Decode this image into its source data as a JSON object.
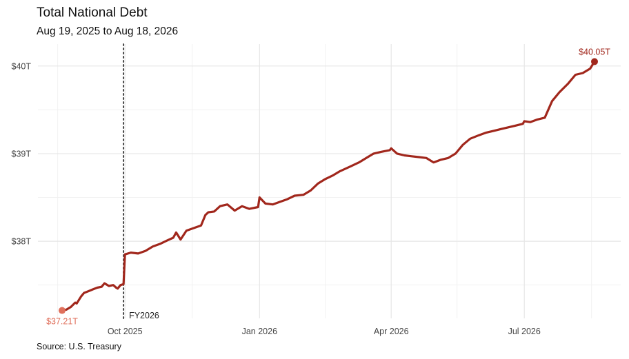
{
  "chart_data": {
    "type": "line",
    "title": "Total National Debt",
    "subtitle": "Aug 19, 2025 to Aug 18, 2026",
    "source": "Source: U.S. Treasury",
    "xlabel": "",
    "ylabel": "",
    "xlim": [
      "2025-08-19",
      "2026-08-18"
    ],
    "ylim": [
      37.12,
      40.25
    ],
    "y_ticks": [
      {
        "value": 38,
        "label": "$38T"
      },
      {
        "value": 39,
        "label": "$39T"
      },
      {
        "value": 40,
        "label": "$40T"
      }
    ],
    "y_minor_ticks": [
      37.5,
      38.5,
      39.5
    ],
    "x_ticks": [
      {
        "date": "2025-10-01",
        "label": "Oct 2025"
      },
      {
        "date": "2026-01-01",
        "label": "Jan 2026"
      },
      {
        "date": "2026-04-01",
        "label": "Apr 2026"
      },
      {
        "date": "2026-07-01",
        "label": "Jul 2026"
      }
    ],
    "x_minor_ticks": [
      "2025-08-16",
      "2025-11-16",
      "2026-02-15",
      "2026-05-16",
      "2026-08-16"
    ],
    "grid": true,
    "line_color": "#a1271c",
    "start_marker_color": "#e0705c",
    "end_marker_color": "#a1271c",
    "fiscal_year_marker": {
      "date": "2025-09-30",
      "label": "FY2026",
      "color": "#444444"
    },
    "start_label": "$37.21T",
    "end_label": "$40.05T",
    "series": [
      {
        "x": [
          "2025-08-19",
          "2025-08-22",
          "2025-08-25",
          "2025-08-28",
          "2025-08-29",
          "2025-09-01",
          "2025-09-03",
          "2025-09-06",
          "2025-09-09",
          "2025-09-12",
          "2025-09-15",
          "2025-09-17",
          "2025-09-20",
          "2025-09-23",
          "2025-09-25",
          "2025-09-26",
          "2025-09-28",
          "2025-09-30",
          "2025-10-01",
          "2025-10-05",
          "2025-10-10",
          "2025-10-15",
          "2025-10-20",
          "2025-10-25",
          "2025-10-30",
          "2025-11-03",
          "2025-11-05",
          "2025-11-08",
          "2025-11-12",
          "2025-11-17",
          "2025-11-22",
          "2025-11-25",
          "2025-11-27",
          "2025-12-01",
          "2025-12-05",
          "2025-12-10",
          "2025-12-15",
          "2025-12-20",
          "2025-12-25",
          "2025-12-31",
          "2026-01-01",
          "2026-01-05",
          "2026-01-10",
          "2026-01-15",
          "2026-01-20",
          "2026-01-25",
          "2026-01-31",
          "2026-02-05",
          "2026-02-10",
          "2026-02-15",
          "2026-02-20",
          "2026-02-25",
          "2026-03-01",
          "2026-03-05",
          "2026-03-10",
          "2026-03-15",
          "2026-03-20",
          "2026-03-25",
          "2026-03-31",
          "2026-04-01",
          "2026-04-05",
          "2026-04-10",
          "2026-04-15",
          "2026-04-20",
          "2026-04-25",
          "2026-04-30",
          "2026-05-05",
          "2026-05-10",
          "2026-05-15",
          "2026-05-20",
          "2026-05-25",
          "2026-05-31",
          "2026-06-05",
          "2026-06-10",
          "2026-06-15",
          "2026-06-20",
          "2026-06-25",
          "2026-06-30",
          "2026-07-01",
          "2026-07-05",
          "2026-07-10",
          "2026-07-15",
          "2026-07-20",
          "2026-07-25",
          "2026-07-31",
          "2026-08-05",
          "2026-08-10",
          "2026-08-15",
          "2026-08-18"
        ],
        "values": [
          37.21,
          37.22,
          37.25,
          37.3,
          37.29,
          37.37,
          37.41,
          37.43,
          37.45,
          37.47,
          37.48,
          37.52,
          37.49,
          37.5,
          37.47,
          37.46,
          37.5,
          37.51,
          37.85,
          37.87,
          37.86,
          37.89,
          37.94,
          37.97,
          38.01,
          38.04,
          38.1,
          38.02,
          38.12,
          38.15,
          38.18,
          38.3,
          38.33,
          38.34,
          38.4,
          38.42,
          38.35,
          38.4,
          38.37,
          38.39,
          38.5,
          38.43,
          38.42,
          38.45,
          38.48,
          38.52,
          38.53,
          38.58,
          38.66,
          38.71,
          38.75,
          38.8,
          38.83,
          38.86,
          38.9,
          38.95,
          39.0,
          39.02,
          39.04,
          39.06,
          39.0,
          38.98,
          38.97,
          38.96,
          38.95,
          38.9,
          38.93,
          38.95,
          39.0,
          39.1,
          39.17,
          39.21,
          39.24,
          39.26,
          39.28,
          39.3,
          39.32,
          39.34,
          39.37,
          39.36,
          39.39,
          39.41,
          39.6,
          39.7,
          39.8,
          39.9,
          39.92,
          39.97,
          40.05
        ]
      }
    ]
  }
}
